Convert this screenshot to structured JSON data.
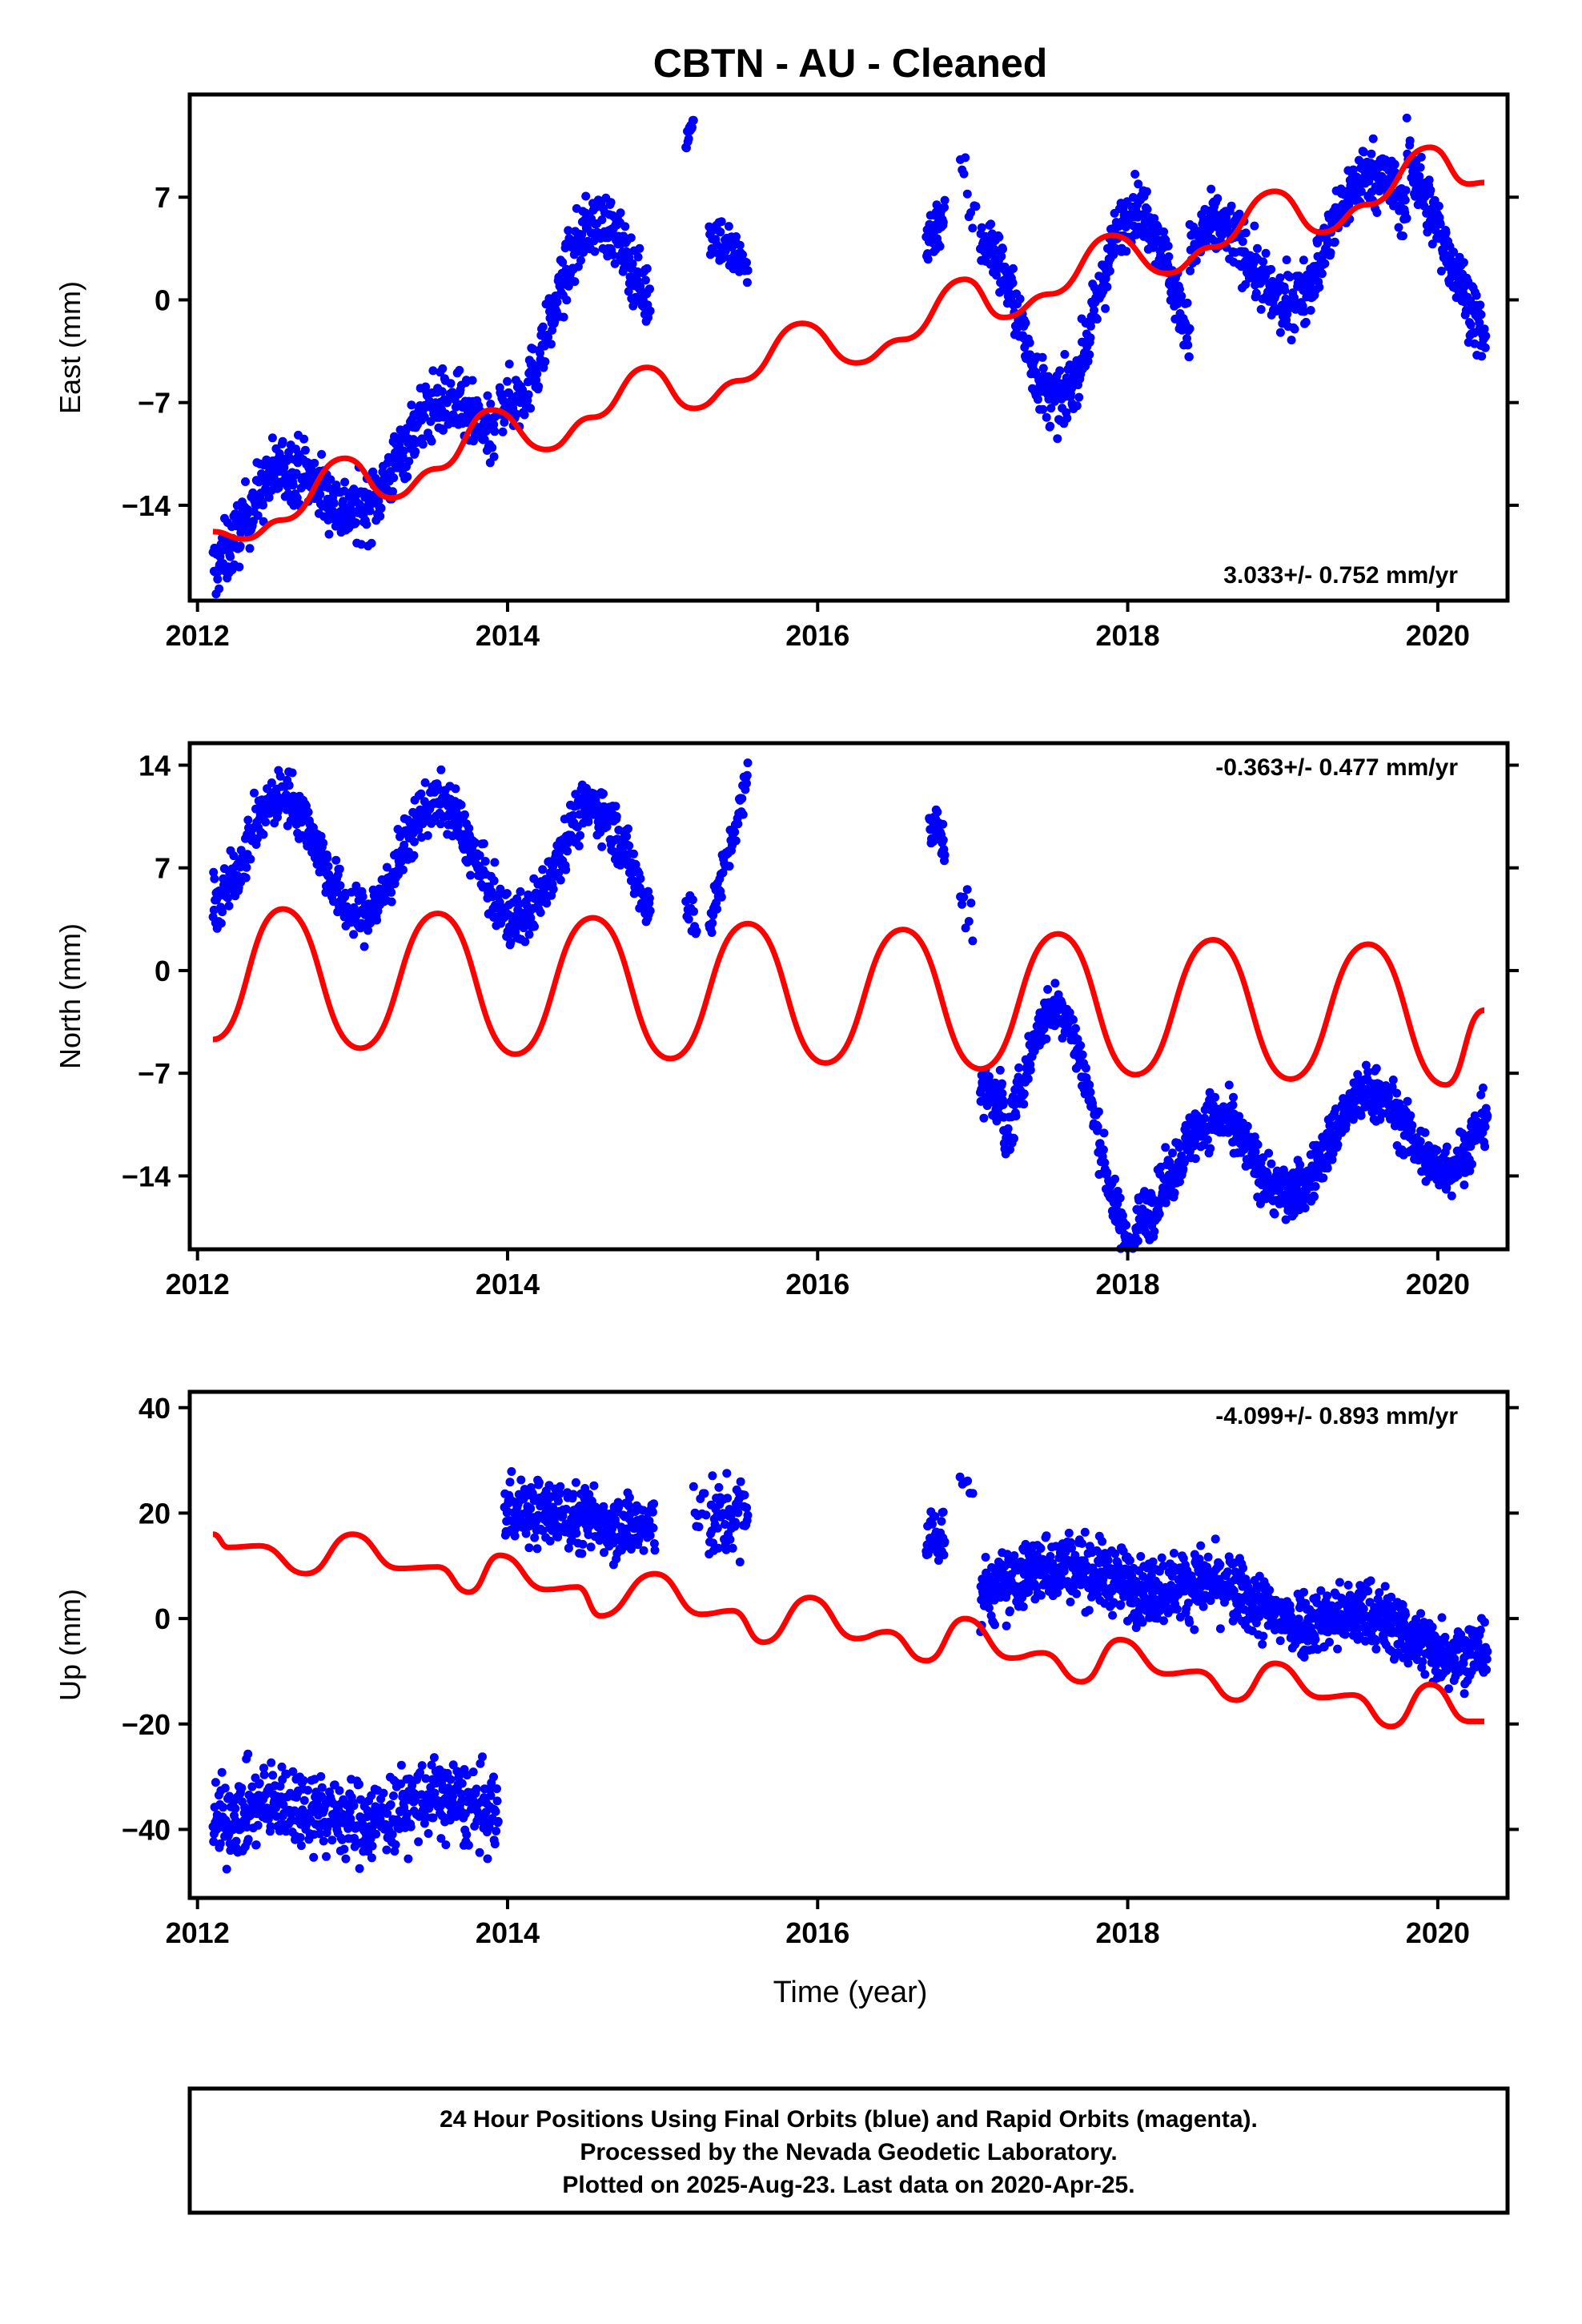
{
  "chart_data": {
    "title": "CBTN  - AU - Cleaned",
    "xlabel": "Time (year)",
    "xlim": [
      2011.95,
      2020.45
    ],
    "xticks": [
      2012,
      2014,
      2016,
      2018,
      2020
    ],
    "series_colors": {
      "observed": "#0000ff",
      "model": "#ff0000"
    },
    "footer": [
      "24 Hour Positions Using Final Orbits (blue) and Rapid Orbits (magenta).",
      "Processed by the Nevada Geodetic Laboratory.",
      "Plotted on 2025-Aug-23. Last data on 2020-Apr-25."
    ],
    "panels": [
      {
        "type": "scatter",
        "ylabel": "East (mm)",
        "ylim": [
          -20.5,
          14
        ],
        "yticks": [
          -14,
          -7,
          0,
          7
        ],
        "rate": "3.033+/- 0.752 mm/yr",
        "rate_position": "bottom-right",
        "segments": [
          {
            "x0": 2012.1,
            "x1": 2013.92,
            "y0": -16,
            "y1": -8,
            "amp": 2.5,
            "noise": 1.6,
            "n": 560
          },
          {
            "x0": 2013.95,
            "x1": 2014.92,
            "y0": -3,
            "y1": 3,
            "amp": 4.5,
            "noise": 1.5,
            "n": 300
          },
          {
            "x0": 2015.15,
            "x1": 2015.2,
            "y0": 11,
            "y1": 12,
            "amp": 0,
            "noise": 0.7,
            "n": 12
          },
          {
            "x0": 2015.3,
            "x1": 2015.55,
            "y0": 5,
            "y1": 2,
            "amp": 0,
            "noise": 1.3,
            "n": 60
          },
          {
            "x0": 2016.7,
            "x1": 2016.82,
            "y0": 4,
            "y1": 6,
            "amp": 0,
            "noise": 1.3,
            "n": 40
          },
          {
            "x0": 2016.92,
            "x1": 2017.02,
            "y0": 9,
            "y1": 5,
            "amp": 0,
            "noise": 1.5,
            "n": 10
          },
          {
            "x0": 2017.05,
            "x1": 2018.4,
            "y0": -2,
            "y1": 1,
            "amp": -6,
            "noise": 1.4,
            "n": 460
          },
          {
            "x0": 2018.4,
            "x1": 2019.8,
            "y0": 1,
            "y1": 6,
            "amp": 3.5,
            "noise": 1.5,
            "n": 460
          },
          {
            "x0": 2019.8,
            "x1": 2020.31,
            "y0": 10,
            "y1": -3,
            "amp": 0,
            "noise": 1.5,
            "n": 170
          }
        ],
        "model_points": [
          [
            2012.1,
            -15.8
          ],
          [
            2012.3,
            -16.3
          ],
          [
            2012.55,
            -15.0
          ],
          [
            2012.95,
            -10.8
          ],
          [
            2013.25,
            -13.5
          ],
          [
            2013.55,
            -11.5
          ],
          [
            2013.9,
            -7.5
          ],
          [
            2014.25,
            -10.2
          ],
          [
            2014.55,
            -8.0
          ],
          [
            2014.9,
            -4.6
          ],
          [
            2015.2,
            -7.4
          ],
          [
            2015.5,
            -5.5
          ],
          [
            2015.9,
            -1.6
          ],
          [
            2016.25,
            -4.3
          ],
          [
            2016.55,
            -2.7
          ],
          [
            2016.95,
            1.4
          ],
          [
            2017.2,
            -1.2
          ],
          [
            2017.5,
            0.4
          ],
          [
            2017.9,
            4.4
          ],
          [
            2018.25,
            1.8
          ],
          [
            2018.55,
            3.6
          ],
          [
            2018.95,
            7.4
          ],
          [
            2019.25,
            4.6
          ],
          [
            2019.55,
            6.5
          ],
          [
            2019.95,
            10.4
          ],
          [
            2020.2,
            7.9
          ],
          [
            2020.3,
            8.0
          ]
        ]
      },
      {
        "type": "scatter",
        "ylabel": "North (mm)",
        "ylim": [
          -19,
          15.5
        ],
        "yticks": [
          -14,
          -7,
          0,
          7,
          14
        ],
        "rate": "-0.363+/- 0.477 mm/yr",
        "rate_position": "top-right",
        "segments": [
          {
            "x0": 2012.1,
            "x1": 2014.92,
            "y0": 8,
            "y1": 7,
            "amp": 4,
            "noise": 1.3,
            "n": 850
          },
          {
            "x0": 2015.15,
            "x1": 2015.22,
            "y0": 4,
            "y1": 4,
            "amp": 0,
            "noise": 1.3,
            "n": 12
          },
          {
            "x0": 2015.3,
            "x1": 2015.55,
            "y0": 3,
            "y1": 13,
            "amp": 0,
            "noise": 1.0,
            "n": 60
          },
          {
            "x0": 2016.72,
            "x1": 2016.82,
            "y0": 10,
            "y1": 9,
            "amp": 0,
            "noise": 1.3,
            "n": 35
          },
          {
            "x0": 2016.92,
            "x1": 2017.0,
            "y0": 5,
            "y1": 3,
            "amp": 0,
            "noise": 1.0,
            "n": 8
          },
          {
            "x0": 2017.05,
            "x1": 2017.2,
            "y0": -8,
            "y1": -9,
            "amp": 0,
            "noise": 1.2,
            "n": 55
          },
          {
            "x0": 2017.2,
            "x1": 2018.05,
            "y0": -8,
            "y1": -12,
            "amp": 7,
            "noise": 1.2,
            "n": 270
          },
          {
            "x0": 2018.05,
            "x1": 2020.32,
            "y0": -14,
            "y1": -10,
            "amp": 3,
            "noise": 1.3,
            "n": 820
          }
        ],
        "model_points": [
          [
            2012.1,
            -4.7
          ],
          [
            2012.55,
            4.2
          ],
          [
            2013.05,
            -5.3
          ],
          [
            2013.55,
            3.9
          ],
          [
            2014.05,
            -5.7
          ],
          [
            2014.55,
            3.6
          ],
          [
            2015.05,
            -6.0
          ],
          [
            2015.55,
            3.2
          ],
          [
            2016.05,
            -6.3
          ],
          [
            2016.55,
            2.8
          ],
          [
            2017.05,
            -6.7
          ],
          [
            2017.55,
            2.5
          ],
          [
            2018.05,
            -7.1
          ],
          [
            2018.55,
            2.1
          ],
          [
            2019.05,
            -7.4
          ],
          [
            2019.55,
            1.8
          ],
          [
            2020.05,
            -7.8
          ],
          [
            2020.3,
            -2.7
          ]
        ]
      },
      {
        "type": "scatter",
        "ylabel": "Up (mm)",
        "ylim": [
          -53,
          43
        ],
        "yticks": [
          -40,
          -20,
          0,
          20,
          40
        ],
        "rate": "-4.099+/- 0.893 mm/yr",
        "rate_position": "top-right",
        "segments": [
          {
            "x0": 2012.1,
            "x1": 2013.94,
            "y0": -37,
            "y1": -36,
            "amp": 2,
            "noise": 5.5,
            "n": 540
          },
          {
            "x0": 2013.98,
            "x1": 2014.95,
            "y0": 21,
            "y1": 17,
            "amp": 0,
            "noise": 4.5,
            "n": 300
          },
          {
            "x0": 2015.2,
            "x1": 2015.28,
            "y0": 22,
            "y1": 22,
            "amp": 0,
            "noise": 4.5,
            "n": 10
          },
          {
            "x0": 2015.3,
            "x1": 2015.55,
            "y0": 18,
            "y1": 20,
            "amp": 0,
            "noise": 5.5,
            "n": 60
          },
          {
            "x0": 2016.7,
            "x1": 2016.82,
            "y0": 15,
            "y1": 16,
            "amp": 0,
            "noise": 4,
            "n": 40
          },
          {
            "x0": 2016.92,
            "x1": 2017.0,
            "y0": 24,
            "y1": 22,
            "amp": 0,
            "noise": 3,
            "n": 6
          },
          {
            "x0": 2017.05,
            "x1": 2018.0,
            "y0": 7,
            "y1": 9,
            "amp": 2,
            "noise": 4.5,
            "n": 340
          },
          {
            "x0": 2018.0,
            "x1": 2020.32,
            "y0": 8,
            "y1": -6,
            "amp": 2,
            "noise": 4.5,
            "n": 800
          }
        ],
        "model_points": [
          [
            2012.1,
            16
          ],
          [
            2012.2,
            13.5
          ],
          [
            2012.4,
            13.8
          ],
          [
            2012.7,
            8.5
          ],
          [
            2013.0,
            16
          ],
          [
            2013.3,
            9.5
          ],
          [
            2013.55,
            9.8
          ],
          [
            2013.75,
            5
          ],
          [
            2013.95,
            12
          ],
          [
            2014.25,
            5.5
          ],
          [
            2014.45,
            6
          ],
          [
            2014.6,
            0.5
          ],
          [
            2014.95,
            8.5
          ],
          [
            2015.25,
            0.8
          ],
          [
            2015.45,
            1.5
          ],
          [
            2015.65,
            -4.5
          ],
          [
            2015.95,
            4
          ],
          [
            2016.25,
            -3.8
          ],
          [
            2016.45,
            -2.5
          ],
          [
            2016.7,
            -8
          ],
          [
            2016.95,
            0
          ],
          [
            2017.25,
            -7.5
          ],
          [
            2017.45,
            -6.5
          ],
          [
            2017.7,
            -12
          ],
          [
            2017.95,
            -4
          ],
          [
            2018.25,
            -10.5
          ],
          [
            2018.45,
            -10
          ],
          [
            2018.7,
            -15.5
          ],
          [
            2018.95,
            -8.5
          ],
          [
            2019.25,
            -15
          ],
          [
            2019.45,
            -14.5
          ],
          [
            2019.7,
            -20.5
          ],
          [
            2019.95,
            -12.5
          ],
          [
            2020.2,
            -19.5
          ],
          [
            2020.3,
            -19.5
          ]
        ]
      }
    ]
  }
}
